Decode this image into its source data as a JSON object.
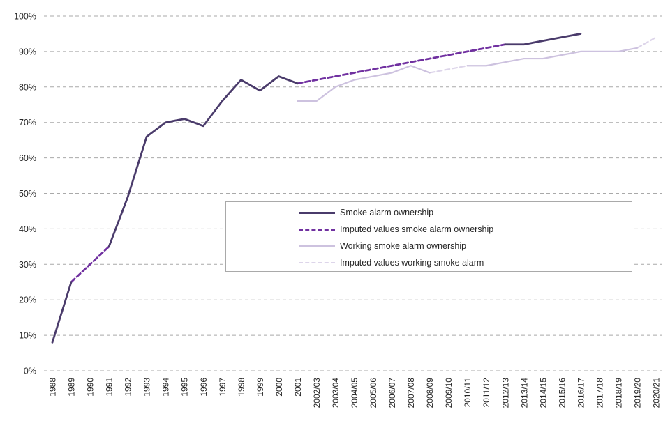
{
  "chart_data": {
    "type": "line",
    "ylim": [
      0,
      100
    ],
    "grid": "horizontal-dashed",
    "legend_position": "inside-plot-center-right-box",
    "y_ticks": [
      {
        "label": "0%",
        "value": 0
      },
      {
        "label": "10%",
        "value": 10
      },
      {
        "label": "20%",
        "value": 20
      },
      {
        "label": "30%",
        "value": 30
      },
      {
        "label": "40%",
        "value": 40
      },
      {
        "label": "50%",
        "value": 50
      },
      {
        "label": "60%",
        "value": 60
      },
      {
        "label": "70%",
        "value": 70
      },
      {
        "label": "80%",
        "value": 80
      },
      {
        "label": "90%",
        "value": 90
      },
      {
        "label": "100%",
        "value": 100
      }
    ],
    "categories": [
      "1988",
      "1989",
      "1990",
      "1991",
      "1992",
      "1993",
      "1994",
      "1995",
      "1996",
      "1997",
      "1998",
      "1999",
      "2000",
      "2001",
      "2002/03",
      "2003/04",
      "2004/05",
      "2005/06",
      "2006/07",
      "2007/08",
      "2008/09",
      "2009/10",
      "2010/11",
      "2011/12",
      "2012/13",
      "2013/14",
      "2014/15",
      "2015/16",
      "2016/17",
      "2017/18",
      "2018/19",
      "2019/20",
      "2020/21"
    ],
    "series": [
      {
        "id": "smoke-alarm-ownership",
        "name": "Smoke alarm ownership",
        "color": "#4A3B6B",
        "line_style": "solid",
        "values": [
          8,
          25,
          null,
          35,
          49,
          66,
          70,
          71,
          69,
          76,
          82,
          79,
          83,
          81,
          null,
          null,
          null,
          null,
          null,
          null,
          null,
          null,
          null,
          null,
          92,
          92,
          93,
          94,
          95,
          null,
          null,
          null,
          null
        ]
      },
      {
        "id": "imputed-values-smoke-alarm-ownership",
        "name": "Imputed values smoke alarm ownership",
        "color": "#7030A0",
        "line_style": "dashed",
        "values": [
          null,
          25,
          30,
          35,
          null,
          null,
          null,
          null,
          null,
          null,
          null,
          null,
          null,
          81,
          82,
          83,
          84,
          85,
          86,
          87,
          88,
          89,
          90,
          91,
          92,
          null,
          null,
          null,
          null,
          null,
          null,
          null,
          null
        ]
      },
      {
        "id": "working-smoke-alarm-ownership",
        "name": "Working smoke alarm ownership",
        "color": "#CDC2DF",
        "line_style": "solid",
        "values": [
          null,
          null,
          null,
          null,
          null,
          null,
          null,
          null,
          null,
          null,
          null,
          null,
          null,
          76,
          76,
          80,
          82,
          83,
          84,
          86,
          84,
          null,
          86,
          86,
          87,
          88,
          88,
          89,
          90,
          90,
          90,
          91,
          null
        ]
      },
      {
        "id": "imputed-values-working-smoke-alarm",
        "name": "Imputed values working smoke alarm",
        "color": "#DDD5EA",
        "line_style": "dashed",
        "values": [
          null,
          null,
          null,
          null,
          null,
          null,
          null,
          null,
          null,
          null,
          null,
          null,
          null,
          null,
          null,
          null,
          null,
          null,
          null,
          null,
          84,
          85,
          86,
          null,
          null,
          null,
          null,
          null,
          null,
          null,
          null,
          91,
          94
        ]
      }
    ]
  },
  "colors": {
    "background": "#FFFFFF",
    "gridline": "#A9A9A9",
    "axis_text": "#262626",
    "legend_border": "#A9A9A9",
    "legend_text": "#262626"
  }
}
